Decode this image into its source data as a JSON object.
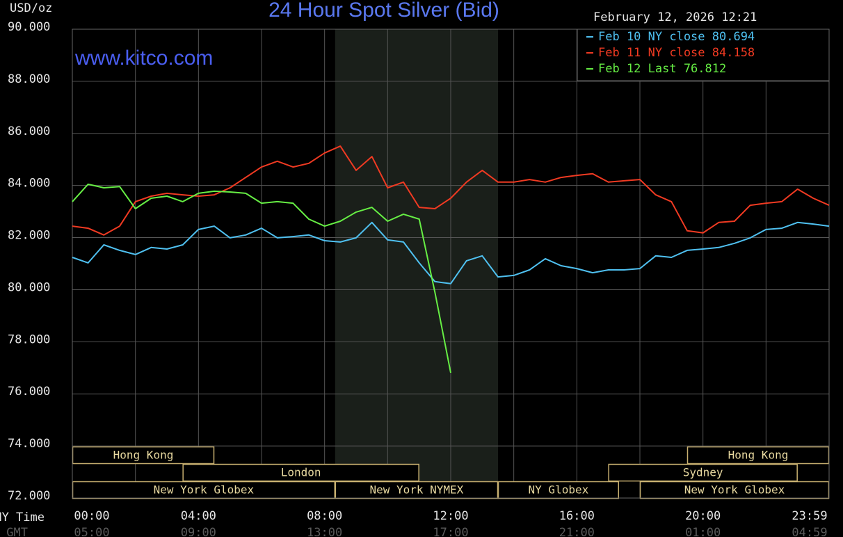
{
  "chart_data": {
    "type": "line",
    "title": "24 Hour Spot Silver (Bid)",
    "y_label": "USD/oz",
    "timestamp": "February 12, 2026 12:21",
    "watermark": "www.kitco.com",
    "x_label": "NY Time",
    "x2_label": "GMT",
    "x": [
      0,
      30,
      60,
      90,
      120,
      150,
      180,
      210,
      240,
      270,
      300,
      330,
      360,
      390,
      420,
      450,
      480,
      510,
      540,
      570,
      600,
      630,
      660,
      690,
      720,
      750,
      780,
      810,
      840,
      870,
      900,
      930,
      960,
      990,
      1020,
      1050,
      1080,
      1110,
      1140,
      1170,
      1200,
      1230,
      1260,
      1290,
      1320,
      1350,
      1380,
      1410,
      1440
    ],
    "xlim": [
      0,
      1440
    ],
    "xticks": [
      {
        "value": 0,
        "label": "00:00"
      },
      {
        "value": 240,
        "label": "04:00"
      },
      {
        "value": 480,
        "label": "08:00"
      },
      {
        "value": 720,
        "label": "12:00"
      },
      {
        "value": 960,
        "label": "16:00"
      },
      {
        "value": 1200,
        "label": "20:00"
      },
      {
        "value": 1439,
        "label": "23:59"
      }
    ],
    "x2_tick_labels": [
      "05:00",
      "09:00",
      "13:00",
      "17:00",
      "21:00",
      "01:00",
      "04:59"
    ],
    "xgrid": [
      0,
      120,
      240,
      360,
      480,
      600,
      720,
      840,
      960,
      1080,
      1200,
      1320,
      1440
    ],
    "ylim": [
      72,
      90
    ],
    "yticks": [
      {
        "value": 72,
        "label": "72.000"
      },
      {
        "value": 74,
        "label": "74.000"
      },
      {
        "value": 76,
        "label": "76.000"
      },
      {
        "value": 78,
        "label": "78.000"
      },
      {
        "value": 80,
        "label": "80.000"
      },
      {
        "value": 82,
        "label": "82.000"
      },
      {
        "value": 84,
        "label": "84.000"
      },
      {
        "value": 86,
        "label": "86.000"
      },
      {
        "value": 88,
        "label": "88.000"
      },
      {
        "value": 90,
        "label": "90.000"
      }
    ],
    "grid": true,
    "shaded_span": [
      500,
      810
    ],
    "sessions": [
      [
        {
          "label": "Hong Kong",
          "start": 0,
          "end": 270
        },
        {
          "label": "Hong Kong",
          "start": 1170,
          "end": 1440
        }
      ],
      [
        {
          "label": "London",
          "start": 210,
          "end": 660
        },
        {
          "label": "Sydney",
          "start": 1020,
          "end": 1380
        }
      ],
      [
        {
          "label": "New York Globex",
          "start": 0,
          "end": 500
        },
        {
          "label": "New York NYMEX",
          "start": 500,
          "end": 810
        },
        {
          "label": "NY Globex",
          "start": 810,
          "end": 1040
        },
        {
          "label": "New York Globex",
          "start": 1080,
          "end": 1440
        }
      ]
    ],
    "series": [
      {
        "name": "Feb 10 NY close 80.694",
        "color": "#4fc0f0",
        "values": [
          81.24,
          81.03,
          81.72,
          81.51,
          81.35,
          81.62,
          81.56,
          81.72,
          82.31,
          82.44,
          81.99,
          82.1,
          82.36,
          81.99,
          82.04,
          82.1,
          81.88,
          81.83,
          81.99,
          82.58,
          81.91,
          81.83,
          81.03,
          80.31,
          80.23,
          81.11,
          81.3,
          80.49,
          80.55,
          80.76,
          81.19,
          80.92,
          80.81,
          80.65,
          80.76,
          80.76,
          80.81,
          81.3,
          81.24,
          81.51,
          81.56,
          81.62,
          81.78,
          81.99,
          82.31,
          82.36,
          82.58,
          82.52,
          82.44
        ]
      },
      {
        "name": "Feb 11 NY close 84.158",
        "color": "#f03a22",
        "values": [
          82.44,
          82.36,
          82.1,
          82.44,
          83.38,
          83.59,
          83.7,
          83.64,
          83.59,
          83.64,
          83.91,
          84.31,
          84.71,
          84.93,
          84.71,
          84.85,
          85.25,
          85.51,
          84.58,
          85.11,
          83.91,
          84.13,
          83.16,
          83.11,
          83.51,
          84.13,
          84.58,
          84.13,
          84.13,
          84.23,
          84.13,
          84.31,
          84.39,
          84.45,
          84.13,
          84.18,
          84.23,
          83.64,
          83.38,
          82.26,
          82.18,
          82.58,
          82.63,
          83.24,
          83.32,
          83.38,
          83.86,
          83.51,
          83.24
        ]
      },
      {
        "name": "Feb 12 Last 76.812",
        "color": "#66ee44",
        "values": [
          83.38,
          84.05,
          83.91,
          83.96,
          83.11,
          83.51,
          83.59,
          83.38,
          83.7,
          83.78,
          83.75,
          83.7,
          83.32,
          83.38,
          83.32,
          82.71,
          82.44,
          82.63,
          82.98,
          83.16,
          82.63,
          82.9,
          82.71,
          79.9,
          76.81,
          null,
          null,
          null,
          null,
          null,
          null,
          null,
          null,
          null,
          null,
          null,
          null,
          null,
          null,
          null,
          null,
          null,
          null,
          null,
          null,
          null,
          null,
          null,
          null
        ]
      }
    ]
  }
}
